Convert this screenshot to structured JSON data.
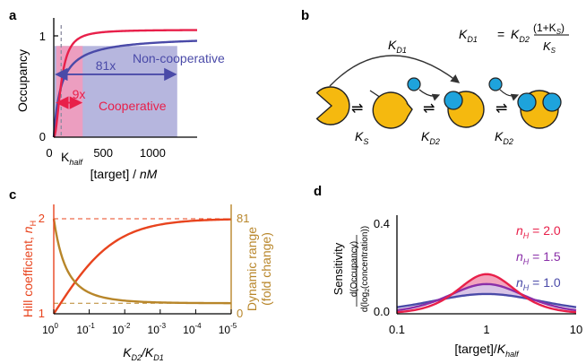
{
  "panels": {
    "a": {
      "letter": "a",
      "ylabel": "Occupancy",
      "xlabel_main": "[target] / ",
      "xlabel_unit": "nM",
      "yticks": [
        "0",
        "1"
      ],
      "xticks": [
        "0",
        "500",
        "1000"
      ],
      "khalf_main": "K",
      "khalf_sub": "half",
      "fold_noncoop": "81x",
      "fold_coop": "9x",
      "label_noncoop": "Non-cooperative",
      "label_coop": "Cooperative",
      "colors": {
        "noncoop": "#4a4aa8",
        "coop": "#e8204a",
        "noncoop_band": "#a9a9d8",
        "coop_band": "#f29bbd"
      }
    },
    "b": {
      "letter": "b",
      "eq_left": "K",
      "eq_left_sub": "D1",
      "eq_eq": "=",
      "eq_k": "K",
      "eq_k_sub": "D2",
      "eq_num": "(1+K",
      "eq_num_sub": "S",
      "eq_num_close": ")",
      "eq_den": "K",
      "eq_den_sub": "S",
      "arc_label": "K",
      "arc_label_sub": "D1",
      "step1": "K",
      "step1_sub": "S",
      "step2": "K",
      "step2_sub": "D2",
      "step3": "K",
      "step3_sub": "D2",
      "colors": {
        "receptor": "#f5b90f",
        "ligand": "#1ea3dc"
      }
    },
    "c": {
      "letter": "c",
      "ylabel_left_main": "Hill coefficient, ",
      "ylabel_left_n": "n",
      "ylabel_left_sub": "H",
      "ylabel_right_1": "Dynamic range",
      "ylabel_right_2": "(fold change)",
      "left_ticks": [
        "1",
        "2"
      ],
      "right_ticks": [
        "0",
        "81"
      ],
      "xticks_base": [
        "10",
        "10",
        "10",
        "10",
        "10",
        "10"
      ],
      "xticks_exp": [
        "0",
        "-1",
        "-2",
        "-3",
        "-4",
        "-5"
      ],
      "xlabel_main": "K",
      "xlabel_sub1": "D2",
      "xlabel_slash": "/K",
      "xlabel_sub2": "D1",
      "colors": {
        "hill": "#e8441e",
        "range": "#b8862a"
      }
    },
    "d": {
      "letter": "d",
      "ylabel_1": "Sensitivity",
      "ylabel_2": "d(Occupancy)",
      "ylabel_3": "d(log",
      "ylabel_3_sub": "2",
      "ylabel_3_end": "(concentration))",
      "yticks": [
        "0.0",
        "0.4"
      ],
      "xticks": [
        "0.1",
        "1",
        "10"
      ],
      "xlabel_main": "[target]/",
      "xlabel_k": "K",
      "xlabel_sub": "half",
      "legend": [
        {
          "n": "n",
          "sub": "H",
          "text": " = 2.0",
          "color": "#e8204a"
        },
        {
          "n": "n",
          "sub": "H",
          "text": " = 1.5",
          "color": "#8a2fa8"
        },
        {
          "n": "n",
          "sub": "H",
          "text": " = 1.0",
          "color": "#4a4aa8"
        }
      ]
    }
  },
  "chart_data": [
    {
      "panel": "a",
      "type": "line",
      "xlabel": "[target] / nM",
      "ylabel": "Occupancy",
      "xlim": [
        0,
        1450
      ],
      "ylim": [
        0,
        1.08
      ],
      "K_half": 75,
      "series": [
        {
          "name": "Cooperative",
          "model": "hill",
          "n_hill": 2.0,
          "fold_range": 9,
          "x": [
            0,
            25,
            50,
            75,
            100,
            150,
            225,
            300,
            500,
            800,
            1200,
            1450
          ],
          "y": [
            0,
            0.1,
            0.31,
            0.5,
            0.64,
            0.8,
            0.9,
            0.94,
            0.98,
            0.99,
            1.0,
            1.0
          ]
        },
        {
          "name": "Non-cooperative",
          "model": "hill",
          "n_hill": 1.0,
          "fold_range": 81,
          "x": [
            0,
            25,
            50,
            75,
            100,
            150,
            225,
            300,
            500,
            800,
            1200,
            1450
          ],
          "y": [
            0,
            0.25,
            0.4,
            0.5,
            0.57,
            0.67,
            0.75,
            0.8,
            0.87,
            0.91,
            0.94,
            0.95
          ]
        }
      ]
    },
    {
      "panel": "c",
      "type": "line",
      "xlabel": "KD2/KD1",
      "x_scale": "log",
      "xlim": [
        1,
        1e-05
      ],
      "series": [
        {
          "name": "Hill coefficient, nH",
          "axis": "left",
          "ylim": [
            1,
            2
          ],
          "x": [
            1,
            0.3,
            0.1,
            0.03,
            0.01,
            0.001,
            0.0001,
            1e-05
          ],
          "y": [
            1.0,
            1.29,
            1.53,
            1.73,
            1.83,
            1.94,
            1.98,
            1.99
          ]
        },
        {
          "name": "Dynamic range (fold change)",
          "axis": "right",
          "ylim": [
            0,
            81
          ],
          "x": [
            1,
            0.3,
            0.1,
            0.03,
            0.01,
            0.001,
            0.0001,
            1e-05
          ],
          "y": [
            81,
            44,
            24,
            14,
            11,
            9.3,
            9.03,
            9.0
          ]
        }
      ]
    },
    {
      "panel": "d",
      "type": "area",
      "xlabel": "[target]/Khalf",
      "ylabel": "Sensitivity",
      "x_scale": "log",
      "xlim": [
        0.1,
        10
      ],
      "ylim": [
        0,
        0.4
      ],
      "series": [
        {
          "name": "nH = 2.0",
          "n_hill": 2.0,
          "x": [
            0.1,
            0.3,
            0.5,
            1,
            2,
            3,
            10
          ],
          "y": [
            0.014,
            0.11,
            0.222,
            0.347,
            0.222,
            0.11,
            0.014
          ]
        },
        {
          "name": "nH = 1.5",
          "n_hill": 1.5,
          "x": [
            0.1,
            0.3,
            0.5,
            1,
            2,
            3,
            10
          ],
          "y": [
            0.032,
            0.12,
            0.19,
            0.26,
            0.19,
            0.12,
            0.032
          ]
        },
        {
          "name": "nH = 1.0",
          "n_hill": 1.0,
          "x": [
            0.1,
            0.3,
            0.5,
            1,
            2,
            3,
            10
          ],
          "y": [
            0.063,
            0.134,
            0.154,
            0.173,
            0.154,
            0.134,
            0.063
          ]
        }
      ]
    }
  ]
}
